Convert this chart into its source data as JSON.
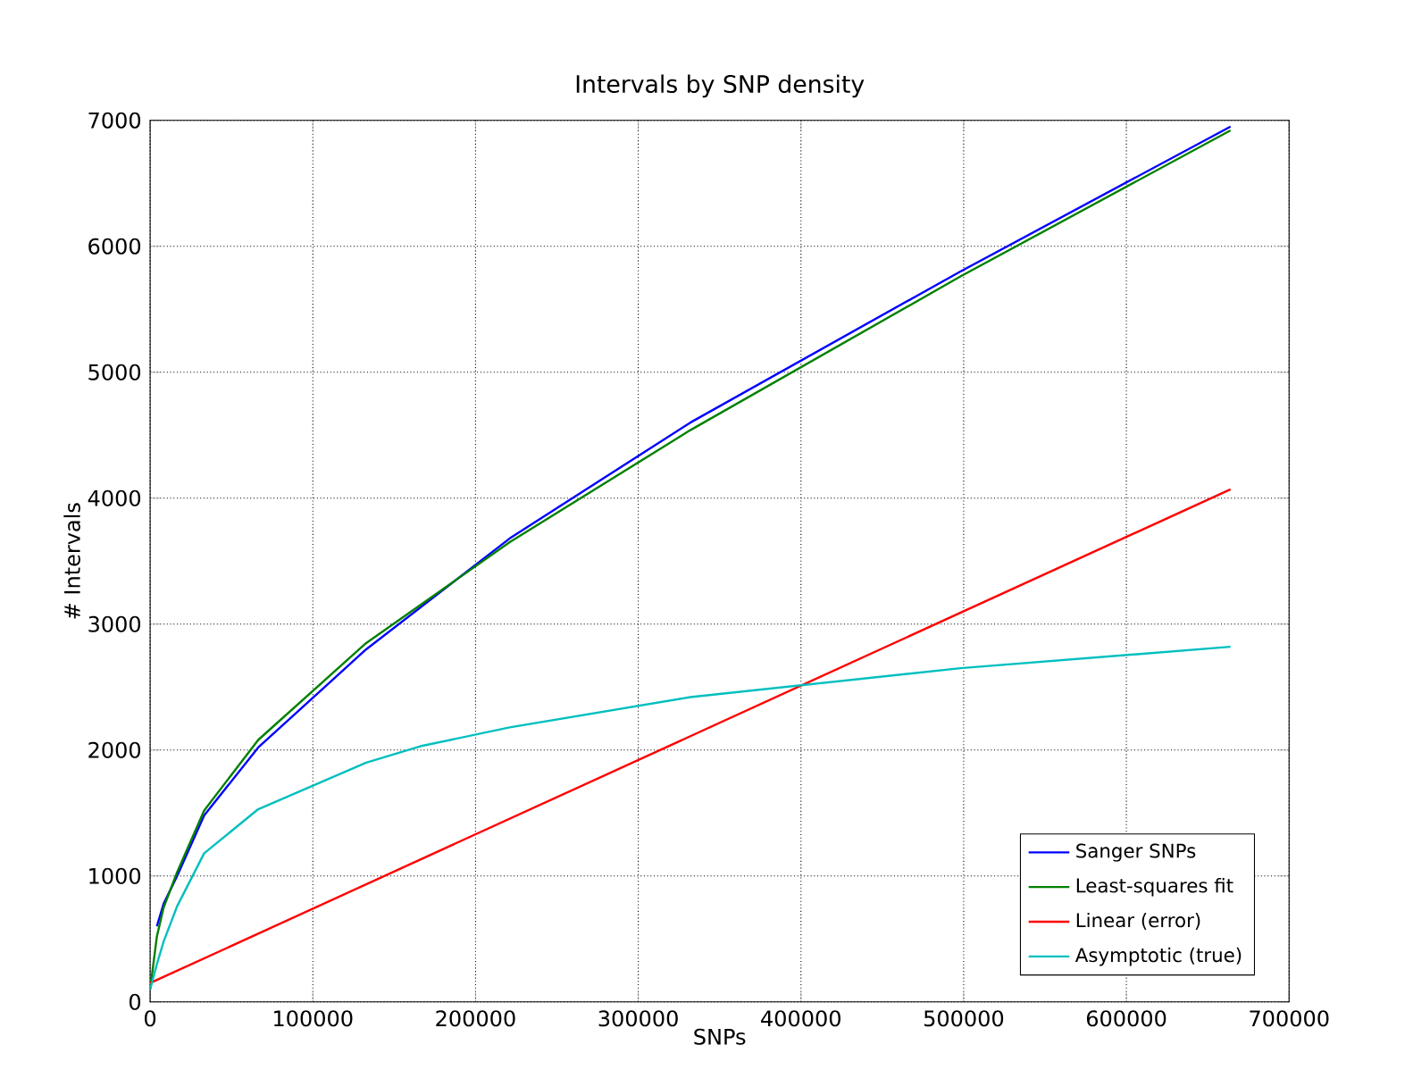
{
  "chart_data": {
    "type": "line",
    "title": "Intervals by SNP density",
    "xlabel": "SNPs",
    "ylabel": "# Intervals",
    "xlim": [
      0,
      700000
    ],
    "ylim": [
      0,
      7000
    ],
    "xticks": [
      0,
      100000,
      200000,
      300000,
      400000,
      500000,
      600000,
      700000
    ],
    "yticks": [
      0,
      1000,
      2000,
      3000,
      4000,
      5000,
      6000,
      7000
    ],
    "grid": true,
    "legend": "bottom right",
    "line_style": "solid",
    "series": [
      {
        "name": "Sanger SNPs",
        "color": "#0000ff",
        "x": [
          4150,
          8300,
          16600,
          33200,
          66400,
          132800,
          221000,
          332000,
          498000,
          664000
        ],
        "values": [
          600,
          780,
          1000,
          1480,
          2020,
          2800,
          3680,
          4600,
          5800,
          6950
        ]
      },
      {
        "name": "Least-squares fit",
        "color": "#008000",
        "x": [
          0,
          4150,
          8300,
          16600,
          33200,
          66400,
          132800,
          221000,
          332000,
          498000,
          664000
        ],
        "values": [
          100,
          520,
          750,
          1030,
          1520,
          2080,
          2850,
          3650,
          4540,
          5760,
          6920
        ]
      },
      {
        "name": "Linear (error)",
        "color": "#ff0000",
        "x": [
          0,
          664000
        ],
        "values": [
          150,
          4070
        ]
      },
      {
        "name": "Asymptotic (true)",
        "color": "#00bfbf",
        "x": [
          0,
          4150,
          8300,
          16600,
          33200,
          66400,
          132800,
          166000,
          221000,
          332000,
          498000,
          664000
        ],
        "values": [
          100,
          300,
          480,
          760,
          1180,
          1530,
          1900,
          2030,
          2180,
          2420,
          2650,
          2820
        ]
      }
    ]
  }
}
